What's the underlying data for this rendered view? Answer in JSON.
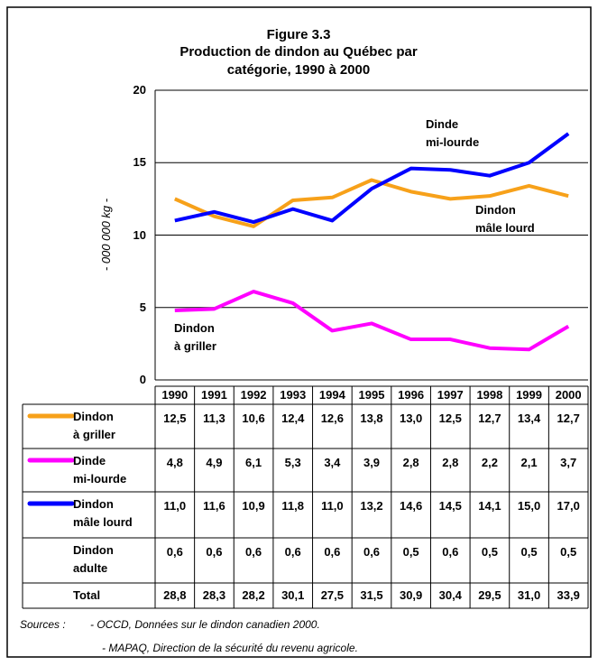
{
  "chart_data": {
    "type": "line",
    "title": "Figure 3.3",
    "subtitle": "Production de dindon au Québec par catégorie, 1990 à 2000",
    "y_label": "- 000 000 kg -",
    "categories": [
      "1990",
      "1991",
      "1992",
      "1993",
      "1994",
      "1995",
      "1996",
      "1997",
      "1998",
      "1999",
      "2000"
    ],
    "ylim": [
      0,
      20
    ],
    "yticks": [
      0,
      5,
      10,
      15,
      20
    ],
    "grid": true,
    "series": [
      {
        "name": "Dindon\nà griller",
        "color": "#f7a11a",
        "values": [
          12.5,
          11.3,
          10.6,
          12.4,
          12.6,
          13.8,
          13.0,
          12.5,
          12.7,
          13.4,
          12.7
        ],
        "value_labels": [
          "12,5",
          "11,3",
          "10,6",
          "12,4",
          "12,6",
          "13,8",
          "13,0",
          "12,5",
          "12,7",
          "13,4",
          "12,7"
        ]
      },
      {
        "name": "Dinde\nmi-lourde",
        "color": "#ff00ff",
        "values": [
          4.8,
          4.9,
          6.1,
          5.3,
          3.4,
          3.9,
          2.8,
          2.8,
          2.2,
          2.1,
          3.7
        ],
        "value_labels": [
          "4,8",
          "4,9",
          "6,1",
          "5,3",
          "3,4",
          "3,9",
          "2,8",
          "2,8",
          "2,2",
          "2,1",
          "3,7"
        ]
      },
      {
        "name": "Dindon\nmâle lourd",
        "color": "#0000ff",
        "values": [
          11.0,
          11.6,
          10.9,
          11.8,
          11.0,
          13.2,
          14.6,
          14.5,
          14.1,
          15.0,
          17.0
        ],
        "value_labels": [
          "11,0",
          "11,6",
          "10,9",
          "11,8",
          "11,0",
          "13,2",
          "14,6",
          "14,5",
          "14,1",
          "15,0",
          "17,0"
        ]
      }
    ],
    "table_rows": [
      {
        "name": "Dindon\nadulte",
        "values": [
          0.6,
          0.6,
          0.6,
          0.6,
          0.6,
          0.6,
          0.5,
          0.6,
          0.5,
          0.5,
          0.5
        ],
        "value_labels": [
          "0,6",
          "0,6",
          "0,6",
          "0,6",
          "0,6",
          "0,6",
          "0,5",
          "0,6",
          "0,5",
          "0,5",
          "0,5"
        ]
      },
      {
        "name": "Total",
        "values": [
          28.8,
          28.3,
          28.2,
          30.1,
          27.5,
          31.5,
          30.9,
          30.4,
          29.5,
          31.0,
          33.9
        ],
        "value_labels": [
          "28,8",
          "28,3",
          "28,2",
          "30,1",
          "27,5",
          "31,5",
          "30,9",
          "30,4",
          "29,5",
          "31,0",
          "33,9"
        ]
      }
    ],
    "sources": [
      "Sources :",
      "- OCCD, Données sur le dindon canadien 2000.",
      "- MAPAQ, Direction de la sécurité du revenu agricole."
    ]
  }
}
